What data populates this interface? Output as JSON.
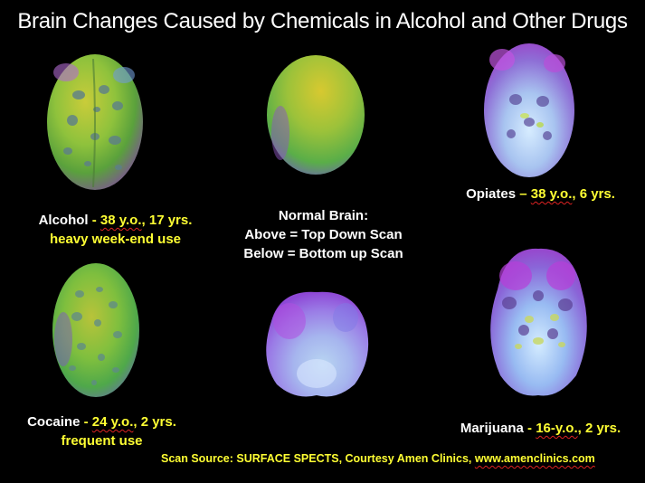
{
  "title": "Brain Changes Caused by Chemicals in Alcohol and Other Drugs",
  "panels": {
    "alcohol": {
      "name": "Alcohol",
      "sep": " - ",
      "age": "38 y.o.",
      "rest": ", 17 yrs.",
      "line2": "heavy week-end use"
    },
    "normal": {
      "line1": "Normal Brain:",
      "line2": "Above = Top Down Scan",
      "line3": "Below = Bottom up Scan"
    },
    "opiates": {
      "name": "Opiates",
      "sep": " – ",
      "age": "38 y.o.",
      "rest": ", 6 yrs."
    },
    "cocaine": {
      "name": "Cocaine",
      "sep": " - ",
      "age": "24 y.o.",
      "rest": ", 2 yrs.",
      "line2": "frequent use"
    },
    "marijuana": {
      "name": "Marijuana",
      "sep": " - ",
      "age": "16-y.o.",
      "rest": ", 2 yrs."
    }
  },
  "source": {
    "prefix": "Scan Source: SURFACE SPECTS, Courtesy Amen Clinics, ",
    "link": "www.amenclinics.com"
  },
  "colors": {
    "background": "#000000",
    "highlight": "#ffff33",
    "text": "#ffffff"
  },
  "icons": [
    "brain-scan-alcohol",
    "brain-scan-normal-top",
    "brain-scan-opiates",
    "brain-scan-cocaine",
    "brain-scan-normal-bottom",
    "brain-scan-marijuana"
  ]
}
